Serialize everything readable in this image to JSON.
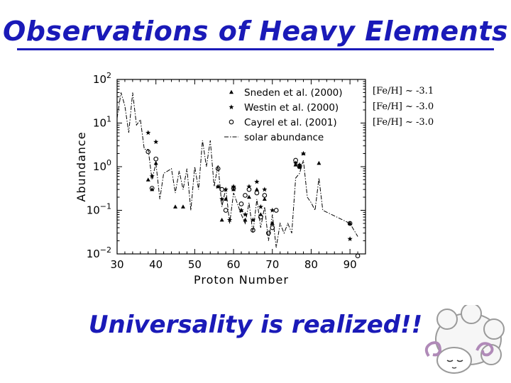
{
  "slide": {
    "title": "Observations of Heavy Elements",
    "conclusion": "Universality is realized!!",
    "title_color": "#1a1ab8"
  },
  "metallicity_labels": [
    "[Fe/H] ~ -3.1",
    "[Fe/H] ~ -3.0",
    "[Fe/H] ~ -3.0"
  ],
  "mascot": {
    "icon": "sheep-icon"
  },
  "chart_data": {
    "type": "scatter",
    "xlabel": "Proton Number",
    "ylabel": "Abundance",
    "xlim": [
      30,
      94
    ],
    "ylim": [
      0.01,
      100
    ],
    "yscale": "log",
    "x_ticks": [
      30,
      40,
      50,
      60,
      70,
      80,
      90
    ],
    "y_ticks": [
      {
        "value": 0.01,
        "base": "10",
        "exp": "−2"
      },
      {
        "value": 0.1,
        "base": "10",
        "exp": "−1"
      },
      {
        "value": 1,
        "base": "10",
        "exp": "0"
      },
      {
        "value": 10,
        "base": "10",
        "exp": "1"
      },
      {
        "value": 100,
        "base": "10",
        "exp": "2"
      }
    ],
    "legend_position": "top-right",
    "series": [
      {
        "name": "Sneden et al. (2000)",
        "marker": "triangle",
        "points": [
          [
            38,
            0.5
          ],
          [
            39,
            0.3
          ],
          [
            40,
            1.2
          ],
          [
            45,
            0.12
          ],
          [
            47,
            0.12
          ],
          [
            56,
            0.35
          ],
          [
            57,
            0.06
          ],
          [
            58,
            0.18
          ],
          [
            60,
            0.3
          ],
          [
            62,
            0.1
          ],
          [
            63,
            0.06
          ],
          [
            64,
            0.2
          ],
          [
            66,
            0.3
          ],
          [
            67,
            0.08
          ],
          [
            68,
            0.18
          ],
          [
            70,
            0.05
          ],
          [
            76,
            1.1
          ],
          [
            77,
            1.0
          ],
          [
            78,
            2.0
          ],
          [
            82,
            1.2
          ],
          [
            90,
            0.05
          ]
        ]
      },
      {
        "name": "Westin et al. (2000)",
        "marker": "star",
        "points": [
          [
            38,
            6.0
          ],
          [
            39,
            0.6
          ],
          [
            40,
            3.7
          ],
          [
            56,
            0.35
          ],
          [
            57,
            0.18
          ],
          [
            58,
            0.3
          ],
          [
            59,
            0.06
          ],
          [
            60,
            0.35
          ],
          [
            62,
            0.1
          ],
          [
            63,
            0.08
          ],
          [
            64,
            0.35
          ],
          [
            65,
            0.06
          ],
          [
            66,
            0.45
          ],
          [
            67,
            0.12
          ],
          [
            68,
            0.3
          ],
          [
            70,
            0.1
          ],
          [
            76,
            1.2
          ],
          [
            77,
            1.1
          ],
          [
            78,
            2.0
          ],
          [
            90,
            0.022
          ]
        ]
      },
      {
        "name": "Cayrel et al. (2001)",
        "marker": "circle",
        "points": [
          [
            38,
            2.2
          ],
          [
            39,
            0.32
          ],
          [
            40,
            1.5
          ],
          [
            56,
            0.9
          ],
          [
            57,
            0.3
          ],
          [
            58,
            0.1
          ],
          [
            60,
            0.32
          ],
          [
            62,
            0.14
          ],
          [
            63,
            0.22
          ],
          [
            64,
            0.3
          ],
          [
            65,
            0.035
          ],
          [
            66,
            0.25
          ],
          [
            67,
            0.07
          ],
          [
            68,
            0.22
          ],
          [
            69,
            0.03
          ],
          [
            70,
            0.04
          ],
          [
            71,
            0.1
          ],
          [
            76,
            1.4
          ],
          [
            77,
            1.0
          ],
          [
            90,
            0.05
          ],
          [
            92,
            0.009
          ]
        ]
      },
      {
        "name": "solar abundance",
        "marker": "dash-dot line",
        "points": [
          [
            30,
            13
          ],
          [
            31,
            50
          ],
          [
            32,
            25
          ],
          [
            33,
            6
          ],
          [
            34,
            50
          ],
          [
            35,
            9
          ],
          [
            36,
            12
          ],
          [
            37,
            2.5
          ],
          [
            38,
            2.5
          ],
          [
            39,
            0.5
          ],
          [
            40,
            1.2
          ],
          [
            41,
            0.18
          ],
          [
            42,
            0.7
          ],
          [
            44,
            0.9
          ],
          [
            45,
            0.25
          ],
          [
            46,
            0.8
          ],
          [
            47,
            0.3
          ],
          [
            48,
            0.9
          ],
          [
            49,
            0.1
          ],
          [
            50,
            1.0
          ],
          [
            51,
            0.3
          ],
          [
            52,
            4.0
          ],
          [
            53,
            1.0
          ],
          [
            54,
            4.0
          ],
          [
            55,
            0.35
          ],
          [
            56,
            1.1
          ],
          [
            57,
            0.12
          ],
          [
            58,
            0.32
          ],
          [
            59,
            0.05
          ],
          [
            60,
            0.25
          ],
          [
            62,
            0.08
          ],
          [
            63,
            0.05
          ],
          [
            64,
            0.15
          ],
          [
            65,
            0.03
          ],
          [
            66,
            0.18
          ],
          [
            67,
            0.04
          ],
          [
            68,
            0.12
          ],
          [
            69,
            0.02
          ],
          [
            70,
            0.08
          ],
          [
            71,
            0.014
          ],
          [
            72,
            0.05
          ],
          [
            73,
            0.03
          ],
          [
            74,
            0.05
          ],
          [
            75,
            0.03
          ],
          [
            76,
            0.55
          ],
          [
            77,
            0.7
          ],
          [
            78,
            1.4
          ],
          [
            79,
            0.2
          ],
          [
            80,
            0.15
          ],
          [
            81,
            0.1
          ],
          [
            82,
            0.55
          ],
          [
            83,
            0.1
          ],
          [
            90,
            0.05
          ],
          [
            92,
            0.025
          ]
        ]
      }
    ]
  }
}
